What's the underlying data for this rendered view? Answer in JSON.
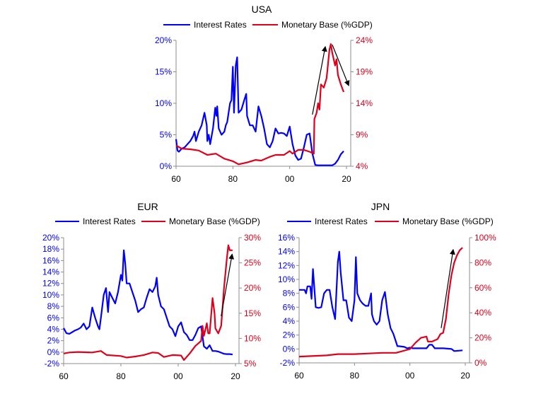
{
  "colors": {
    "interest": "#0000FF",
    "monetary": "#E0001B",
    "axis": "#8C8C8C",
    "arrow": "#000000"
  },
  "chart_data": [
    {
      "type": "line",
      "title": "USA",
      "legend": [
        "Interest Rates",
        "Monetary Base (%GDP)"
      ],
      "legend_placement": "top",
      "x_ticks": [
        1960,
        1980,
        2000,
        2020
      ],
      "x_tick_labels": [
        "60",
        "80",
        "00",
        "20"
      ],
      "xlim": [
        1960,
        2020
      ],
      "y_left": {
        "lim": [
          0,
          20
        ],
        "ticks": [
          0,
          5,
          10,
          15,
          20
        ],
        "labels": [
          "0%",
          "5%",
          "10%",
          "15%",
          "20%"
        ]
      },
      "y_right": {
        "lim": [
          4,
          24
        ],
        "ticks": [
          4,
          9,
          14,
          19,
          24
        ],
        "labels": [
          "4%",
          "9%",
          "14%",
          "19%",
          "24%"
        ]
      },
      "grid": false,
      "series": [
        {
          "name": "Interest Rates",
          "axis": "left",
          "x": [
            1960,
            1960.5,
            1961,
            1962,
            1963,
            1964,
            1965,
            1966,
            1966.5,
            1967,
            1968,
            1969,
            1970,
            1970.8,
            1971,
            1971.5,
            1972,
            1973,
            1973.8,
            1974.2,
            1974.5,
            1975,
            1976,
            1977,
            1977.5,
            1978,
            1979,
            1979.5,
            1980,
            1980.4,
            1981,
            1981.5,
            1982,
            1983,
            1984,
            1984.7,
            1985,
            1986,
            1987,
            1988,
            1989,
            1990,
            1991,
            1992,
            1993,
            1994,
            1995,
            1996,
            1997,
            1998,
            1999,
            2000,
            2001,
            2002,
            2003,
            2004,
            2005,
            2006,
            2007,
            2008,
            2009,
            2010,
            2012,
            2015,
            2016,
            2017,
            2018,
            2019
          ],
          "y": [
            4.3,
            2.5,
            2.3,
            2.8,
            3.0,
            3.5,
            4.0,
            4.8,
            5.5,
            4.0,
            5.5,
            6.5,
            8.5,
            6.5,
            4.0,
            5.0,
            3.5,
            6.0,
            9.3,
            8.0,
            9.5,
            6.0,
            5.0,
            5.5,
            6.5,
            7.0,
            10.0,
            10.5,
            15.8,
            8.5,
            16.0,
            17.3,
            8.5,
            9.0,
            10.5,
            11.5,
            8.0,
            6.5,
            6.5,
            5.5,
            9.5,
            8.0,
            6.0,
            3.5,
            3.0,
            4.0,
            6.0,
            5.2,
            5.3,
            5.2,
            4.8,
            6.3,
            3.5,
            1.7,
            1.0,
            1.2,
            3.0,
            5.0,
            5.2,
            2.0,
            0.2,
            0.15,
            0.15,
            0.15,
            0.4,
            1.0,
            1.9,
            2.4
          ]
        },
        {
          "name": "Monetary Base (%GDP)",
          "axis": "right",
          "x": [
            1960,
            1962,
            1965,
            1968,
            1971,
            1974,
            1977,
            1980,
            1982,
            1985,
            1988,
            1990,
            1993,
            1995,
            1998,
            2000,
            2001,
            2003,
            2005,
            2007,
            2008.5,
            2008.7,
            2009.5,
            2010,
            2010.5,
            2011,
            2012,
            2013,
            2014,
            2014.5,
            2015,
            2016,
            2016.5,
            2017,
            2018,
            2019
          ],
          "y": [
            7.3,
            6.8,
            6.7,
            6.5,
            5.8,
            6.0,
            5.2,
            4.8,
            4.3,
            4.6,
            5.0,
            4.9,
            5.5,
            5.8,
            5.8,
            6.4,
            6.0,
            6.6,
            6.6,
            6.3,
            6.0,
            11.5,
            12.5,
            14.0,
            13.0,
            17.0,
            16.5,
            18.0,
            22.5,
            23.4,
            22.0,
            20.0,
            21.0,
            18.5,
            17.0,
            15.8
          ]
        }
      ],
      "annotations": [
        {
          "type": "arrow",
          "from": [
            2008,
            8.2
          ],
          "to": [
            2012.5,
            18.9
          ],
          "axis": "left"
        },
        {
          "type": "arrow",
          "from": [
            2015,
            19.3
          ],
          "to": [
            2020.7,
            12.9
          ],
          "axis": "left"
        }
      ]
    },
    {
      "type": "line",
      "title": "EUR",
      "legend": [
        "Interest Rates",
        "Monetary Base (%GDP)"
      ],
      "legend_placement": "top",
      "x_ticks": [
        1960,
        1980,
        2000,
        2020
      ],
      "x_tick_labels": [
        "60",
        "80",
        "00",
        "20"
      ],
      "xlim": [
        1960,
        2020
      ],
      "y_left": {
        "lim": [
          -2,
          20
        ],
        "ticks": [
          -2,
          0,
          2,
          4,
          6,
          8,
          10,
          12,
          14,
          16,
          18,
          20
        ],
        "labels": [
          "-2%",
          "0%",
          "2%",
          "4%",
          "6%",
          "8%",
          "10%",
          "12%",
          "14%",
          "16%",
          "18%",
          "20%"
        ]
      },
      "y_right": {
        "lim": [
          5,
          30
        ],
        "ticks": [
          5,
          10,
          15,
          20,
          25,
          30
        ],
        "labels": [
          "5%",
          "10%",
          "15%",
          "20%",
          "25%",
          "30%"
        ]
      },
      "grid": false,
      "series": [
        {
          "name": "Interest Rates",
          "axis": "left",
          "x": [
            1960,
            1961,
            1962,
            1963,
            1964,
            1965,
            1966,
            1967,
            1968,
            1969,
            1970,
            1971,
            1972,
            1972.5,
            1973,
            1974,
            1974.8,
            1975.5,
            1976,
            1977,
            1978,
            1979,
            1980,
            1980.5,
            1981,
            1981.5,
            1982,
            1983,
            1984,
            1985,
            1986,
            1987,
            1988,
            1989,
            1990,
            1991,
            1992,
            1992.5,
            1993,
            1994,
            1995,
            1996,
            1997,
            1998,
            1999,
            2000,
            2001,
            2002,
            2003,
            2004,
            2005,
            2006,
            2007,
            2008,
            2009,
            2010,
            2011,
            2012,
            2013,
            2014,
            2015,
            2016,
            2017,
            2018,
            2019
          ],
          "y": [
            4.2,
            3.3,
            3.2,
            3.5,
            3.8,
            4.0,
            4.3,
            5.0,
            4.0,
            4.5,
            7.8,
            6.0,
            4.5,
            4.0,
            6.0,
            10.0,
            11.2,
            7.0,
            10.5,
            9.5,
            8.5,
            10.5,
            13.5,
            12.5,
            17.8,
            15.5,
            12.0,
            12.0,
            10.5,
            9.0,
            7.0,
            7.5,
            7.8,
            9.5,
            11.0,
            10.5,
            11.5,
            13.0,
            10.0,
            8.0,
            7.5,
            6.0,
            4.5,
            4.0,
            2.8,
            4.5,
            5.2,
            3.5,
            3.0,
            2.1,
            2.1,
            3.0,
            4.2,
            4.5,
            1.0,
            0.6,
            1.2,
            0.2,
            0.2,
            0.1,
            -0.1,
            -0.3,
            -0.35,
            -0.35,
            -0.4
          ]
        },
        {
          "name": "Monetary Base (%GDP)",
          "axis": "right",
          "x": [
            1960,
            1962,
            1965,
            1970,
            1973,
            1975,
            1980,
            1982,
            1985,
            1988,
            1991,
            1993,
            1995,
            1998,
            2001,
            2002,
            2004,
            2006,
            2008,
            2008.5,
            2009,
            2010,
            2010.5,
            2011,
            2012,
            2012.7,
            2013,
            2014,
            2015,
            2016,
            2017,
            2017.5,
            2018,
            2019
          ],
          "y": [
            7.0,
            7.2,
            7.3,
            7.2,
            7.5,
            6.7,
            6.5,
            6.2,
            6.4,
            6.7,
            7.2,
            7.1,
            6.3,
            6.7,
            6.6,
            5.7,
            7.0,
            8.5,
            9.5,
            12.5,
            10.5,
            13.0,
            11.0,
            11.0,
            18.0,
            15.0,
            12.0,
            11.0,
            12.5,
            20.0,
            26.0,
            28.5,
            27.5,
            27.5
          ]
        }
      ],
      "annotations": [
        {
          "type": "arrow",
          "from": [
            2015,
            6.3
          ],
          "to": [
            2018.8,
            17.0
          ],
          "axis": "left"
        }
      ]
    },
    {
      "type": "line",
      "title": "JPN",
      "legend": [
        "Interest Rates",
        "Monetary Base (%GDP)"
      ],
      "legend_placement": "top",
      "x_ticks": [
        1960,
        1980,
        2000,
        2020
      ],
      "x_tick_labels": [
        "60",
        "80",
        "00",
        "20"
      ],
      "xlim": [
        1960,
        2020
      ],
      "y_left": {
        "lim": [
          -2,
          16
        ],
        "ticks": [
          -2,
          0,
          2,
          4,
          6,
          8,
          10,
          12,
          14,
          16
        ],
        "labels": [
          "-2%",
          "0%",
          "2%",
          "4%",
          "6%",
          "8%",
          "10%",
          "12%",
          "14%",
          "16%"
        ]
      },
      "y_right": {
        "lim": [
          0,
          100
        ],
        "ticks": [
          0,
          20,
          40,
          60,
          80,
          100
        ],
        "labels": [
          "0%",
          "20%",
          "40%",
          "60%",
          "80%",
          "100%"
        ]
      },
      "grid": false,
      "series": [
        {
          "name": "Interest Rates",
          "axis": "left",
          "x": [
            1960,
            1962,
            1962.5,
            1963,
            1964,
            1964.5,
            1965,
            1966,
            1967,
            1968,
            1969,
            1970,
            1971,
            1972,
            1973,
            1974,
            1974.5,
            1975,
            1976,
            1977,
            1978,
            1979,
            1980,
            1980.5,
            1981,
            1982,
            1983,
            1984,
            1985,
            1986,
            1986.3,
            1987,
            1988,
            1989,
            1990,
            1991,
            1992,
            1993,
            1994,
            1995,
            1995.5,
            1996,
            1998,
            1999,
            2000,
            2001,
            2006,
            2007,
            2008,
            2009,
            2012,
            2015,
            2016,
            2019
          ],
          "y": [
            8.5,
            8.5,
            8.0,
            9.0,
            9.0,
            7.2,
            11.5,
            6.0,
            5.9,
            6.0,
            8.0,
            8.5,
            8.5,
            6.0,
            4.3,
            12.5,
            14.0,
            11.0,
            7.0,
            7.0,
            4.5,
            4.0,
            7.0,
            13.2,
            8.0,
            7.0,
            6.5,
            6.2,
            6.2,
            8.0,
            5.0,
            4.0,
            3.5,
            4.0,
            7.0,
            8.2,
            5.0,
            3.0,
            2.2,
            1.0,
            0.4,
            0.4,
            0.3,
            0.1,
            0.2,
            0.1,
            0.1,
            0.6,
            0.6,
            0.1,
            0.1,
            0.0,
            -0.3,
            -0.2
          ]
        },
        {
          "name": "Monetary Base (%GDP)",
          "axis": "right",
          "x": [
            1960,
            1970,
            1974,
            1980,
            1985,
            1990,
            1995,
            2000,
            2002,
            2004,
            2006,
            2006.5,
            2008,
            2010,
            2011,
            2012,
            2013,
            2014,
            2015,
            2016,
            2017,
            2018,
            2019
          ],
          "y": [
            5,
            6,
            7,
            7,
            7.5,
            8,
            8,
            11,
            16,
            20,
            21,
            17,
            17,
            19,
            23,
            24,
            35,
            55,
            70,
            80,
            86,
            90,
            92
          ]
        }
      ],
      "annotations": [
        {
          "type": "arrow",
          "from": [
            2011.3,
            3.0
          ],
          "to": [
            2015.6,
            14.2
          ],
          "axis": "left"
        }
      ]
    }
  ]
}
